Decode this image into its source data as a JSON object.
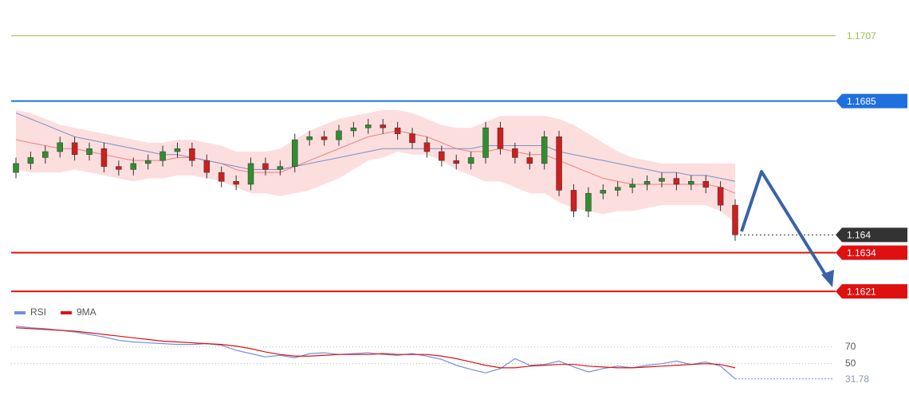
{
  "chart_data": [
    {
      "type": "candlestick",
      "open": [
        1.1661,
        1.1664,
        1.1666,
        1.1668,
        1.1671,
        1.1667,
        1.1669,
        1.1663,
        1.1662,
        1.1664,
        1.1665,
        1.1668,
        1.1669,
        1.1665,
        1.1661,
        1.1658,
        1.1657,
        1.1664,
        1.1662,
        1.1663,
        1.1672,
        1.1673,
        1.1672,
        1.1675,
        1.1676,
        1.1677,
        1.1676,
        1.1674,
        1.1671,
        1.1668,
        1.1665,
        1.1664,
        1.1666,
        1.1676,
        1.1669,
        1.1666,
        1.1664,
        1.1673,
        1.1655,
        1.1648,
        1.1654,
        1.1655,
        1.1656,
        1.1657,
        1.1658,
        1.1659,
        1.1657,
        1.1658,
        1.1656,
        1.165
      ],
      "high": [
        1.1666,
        1.1668,
        1.167,
        1.1673,
        1.1673,
        1.1671,
        1.1671,
        1.1665,
        1.1666,
        1.1667,
        1.167,
        1.1671,
        1.1671,
        1.1667,
        1.1663,
        1.166,
        1.1666,
        1.1666,
        1.1665,
        1.1674,
        1.1675,
        1.1675,
        1.1677,
        1.1678,
        1.1679,
        1.1679,
        1.1678,
        1.1676,
        1.1673,
        1.167,
        1.1667,
        1.1668,
        1.1678,
        1.1678,
        1.1671,
        1.1668,
        1.1675,
        1.1675,
        1.1657,
        1.1656,
        1.1657,
        1.1658,
        1.1659,
        1.166,
        1.1661,
        1.1661,
        1.166,
        1.166,
        1.1658,
        1.1652
      ],
      "low": [
        1.1659,
        1.1662,
        1.1664,
        1.1666,
        1.1665,
        1.1665,
        1.1661,
        1.166,
        1.166,
        1.1662,
        1.1663,
        1.1666,
        1.1663,
        1.1659,
        1.1656,
        1.1655,
        1.1655,
        1.166,
        1.166,
        1.1661,
        1.167,
        1.167,
        1.167,
        1.1673,
        1.1674,
        1.1674,
        1.1672,
        1.1669,
        1.1666,
        1.1663,
        1.1662,
        1.1662,
        1.1664,
        1.1667,
        1.1664,
        1.1662,
        1.1662,
        1.1653,
        1.1646,
        1.1646,
        1.1652,
        1.1653,
        1.1654,
        1.1655,
        1.1656,
        1.1655,
        1.1655,
        1.1654,
        1.1648,
        1.1638
      ],
      "close": [
        1.1664,
        1.1666,
        1.1668,
        1.1671,
        1.1667,
        1.1669,
        1.1663,
        1.1662,
        1.1664,
        1.1665,
        1.1668,
        1.1669,
        1.1665,
        1.1661,
        1.1658,
        1.1657,
        1.1664,
        1.1662,
        1.1663,
        1.1672,
        1.1673,
        1.1672,
        1.1675,
        1.1676,
        1.1677,
        1.1676,
        1.1674,
        1.1671,
        1.1668,
        1.1665,
        1.1664,
        1.1666,
        1.1676,
        1.1669,
        1.1666,
        1.1664,
        1.1673,
        1.1655,
        1.1648,
        1.1654,
        1.1655,
        1.1656,
        1.1657,
        1.1658,
        1.1659,
        1.1657,
        1.1658,
        1.1656,
        1.165,
        1.164
      ],
      "up_color": "#2f8f2f",
      "down_color": "#cc1f1f",
      "band": {
        "color": "#fcdede",
        "upper": [
          1.1682,
          1.1681,
          1.1679,
          1.1677,
          1.1676,
          1.1675,
          1.1674,
          1.1673,
          1.1672,
          1.1671,
          1.1671,
          1.1672,
          1.1672,
          1.1671,
          1.167,
          1.1668,
          1.1668,
          1.1668,
          1.1669,
          1.1672,
          1.1675,
          1.1677,
          1.1679,
          1.168,
          1.1681,
          1.1682,
          1.1682,
          1.1681,
          1.1679,
          1.1677,
          1.1676,
          1.1676,
          1.1678,
          1.168,
          1.168,
          1.168,
          1.168,
          1.1679,
          1.1677,
          1.1674,
          1.1671,
          1.1668,
          1.1666,
          1.1665,
          1.1664,
          1.1664,
          1.1664,
          1.1664,
          1.1664,
          1.1664
        ],
        "lower": [
          1.1662,
          1.1661,
          1.1661,
          1.1661,
          1.1662,
          1.1661,
          1.166,
          1.1659,
          1.1658,
          1.1659,
          1.1659,
          1.166,
          1.166,
          1.1659,
          1.1658,
          1.1656,
          1.1654,
          1.1654,
          1.1653,
          1.1654,
          1.1655,
          1.1657,
          1.1659,
          1.1662,
          1.1665,
          1.1666,
          1.1668,
          1.1667,
          1.1667,
          1.1665,
          1.1662,
          1.166,
          1.1658,
          1.1658,
          1.1656,
          1.1654,
          1.1654,
          1.1651,
          1.1649,
          1.1648,
          1.1647,
          1.1648,
          1.1648,
          1.1649,
          1.165,
          1.165,
          1.165,
          1.165,
          1.1648,
          1.1644
        ]
      },
      "overlays": [
        {
          "color": "#f08080",
          "values": [
            1.1672,
            1.1671,
            1.167,
            1.1669,
            1.1669,
            1.1668,
            1.1667,
            1.1666,
            1.1665,
            1.1665,
            1.1665,
            1.1666,
            1.1666,
            1.1665,
            1.1664,
            1.1662,
            1.1661,
            1.1661,
            1.1661,
            1.1663,
            1.1665,
            1.1667,
            1.1669,
            1.1671,
            1.1673,
            1.1674,
            1.1675,
            1.1674,
            1.1673,
            1.1671,
            1.1669,
            1.1668,
            1.1668,
            1.1669,
            1.1668,
            1.1667,
            1.1667,
            1.1665,
            1.1663,
            1.1661,
            1.1659,
            1.1658,
            1.1657,
            1.1657,
            1.1657,
            1.1657,
            1.1657,
            1.1657,
            1.1656,
            1.1654
          ]
        },
        {
          "color": "#7a8fc8",
          "values": [
            1.1681,
            1.1679,
            1.1677,
            1.1675,
            1.1673,
            1.1672,
            1.1671,
            1.167,
            1.1669,
            1.1668,
            1.1667,
            1.1667,
            1.1666,
            1.1665,
            1.1664,
            1.1663,
            1.1662,
            1.1662,
            1.1662,
            1.1663,
            1.1664,
            1.1665,
            1.1666,
            1.1667,
            1.1668,
            1.1669,
            1.1669,
            1.1669,
            1.1669,
            1.1669,
            1.1669,
            1.1669,
            1.167,
            1.167,
            1.167,
            1.167,
            1.167,
            1.1668,
            1.1667,
            1.1666,
            1.1665,
            1.1664,
            1.1663,
            1.1662,
            1.1661,
            1.1661,
            1.166,
            1.166,
            1.1659,
            1.1658
          ]
        }
      ],
      "levels": [
        {
          "value": 1.1707,
          "color": "#8bc34a",
          "box": false,
          "dotted": false
        },
        {
          "value": 1.1685,
          "color": "#1f6fe0",
          "box": true,
          "dotted": false
        },
        {
          "value": 1.164,
          "color": "#333333",
          "box": true,
          "dotted": true
        },
        {
          "value": 1.1634,
          "color": "#e01010",
          "box": true,
          "dotted": false
        },
        {
          "value": 1.1621,
          "color": "#e01010",
          "box": true,
          "dotted": false
        }
      ],
      "ylim": [
        1.1617,
        1.1719
      ]
    },
    {
      "type": "line",
      "series": [
        {
          "name": "RSI",
          "color": "#6f8fe0",
          "values": [
            95,
            93,
            92,
            90,
            88,
            85,
            82,
            78,
            76,
            75,
            74,
            73,
            73,
            74,
            72,
            66,
            62,
            58,
            60,
            57,
            62,
            63,
            61,
            62,
            63,
            61,
            60,
            62,
            59,
            55,
            48,
            43,
            39,
            44,
            56,
            48,
            49,
            53,
            46,
            40,
            44,
            47,
            45,
            48,
            50,
            53,
            49,
            52,
            47,
            31.78
          ]
        },
        {
          "name": "9MA",
          "color": "#e01010",
          "values": [
            93,
            92,
            91,
            90,
            89,
            87,
            85,
            83,
            81,
            79,
            77,
            76,
            75,
            74,
            73,
            71,
            68,
            64,
            61,
            59,
            59,
            60,
            61,
            61,
            61,
            62,
            61,
            61,
            61,
            59,
            56,
            52,
            48,
            45,
            45,
            47,
            48,
            49,
            49,
            47,
            46,
            45,
            45,
            46,
            47,
            48,
            49,
            50,
            49,
            45
          ]
        }
      ],
      "ylim": [
        20,
        110
      ],
      "yticks": [
        70,
        50
      ],
      "grid": true
    }
  ]
}
